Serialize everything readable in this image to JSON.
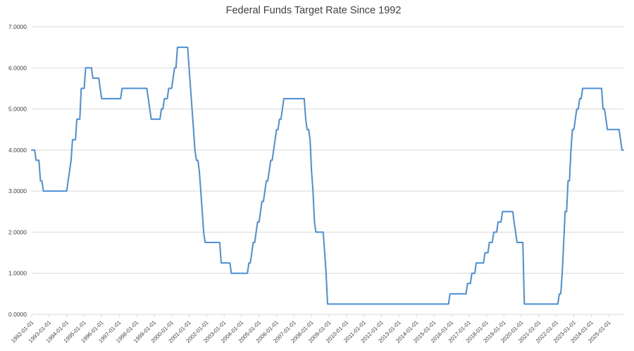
{
  "chart_data": {
    "type": "line",
    "title": "Federal Funds Target Rate Since 1992",
    "xlabel": "",
    "ylabel": "",
    "ylim": [
      0,
      7
    ],
    "grid": true,
    "legend": "none",
    "y_tick_labels": [
      "0.0000",
      "1.0000",
      "2.0000",
      "3.0000",
      "4.0000",
      "5.0000",
      "6.0000",
      "7.0000"
    ],
    "x_tick_labels": [
      "1992-01-01",
      "1993-01-01",
      "1994-01-01",
      "1995-01-01",
      "1996-01-01",
      "1997-01-01",
      "1998-01-01",
      "1999-01-01",
      "2000-01-01",
      "2001-01-01",
      "2002-01-01",
      "2003-01-01",
      "2004-01-01",
      "2005-01-01",
      "2006-01-01",
      "2007-01-01",
      "2008-01-01",
      "2009-01-01",
      "2010-01-01",
      "2011-01-01",
      "2012-01-01",
      "2013-01-01",
      "2014-01-01",
      "2015-01-01",
      "2016-01-01",
      "2017-01-01",
      "2018-01-01",
      "2019-01-01",
      "2020-01-01",
      "2021-01-01",
      "2022-01-01",
      "2023-01-01",
      "2024-01-01",
      "2025-01-01"
    ],
    "x_domain": [
      "1992-01",
      "2025-11"
    ],
    "rate_changes": [
      [
        "1992-01",
        4.0
      ],
      [
        "1992-04",
        3.75
      ],
      [
        "1992-07",
        3.25
      ],
      [
        "1992-09",
        3.0
      ],
      [
        "1994-02",
        3.25
      ],
      [
        "1994-03",
        3.5
      ],
      [
        "1994-04",
        3.75
      ],
      [
        "1994-05",
        4.25
      ],
      [
        "1994-08",
        4.75
      ],
      [
        "1994-11",
        5.5
      ],
      [
        "1995-02",
        6.0
      ],
      [
        "1995-07",
        5.75
      ],
      [
        "1995-12",
        5.5
      ],
      [
        "1996-01",
        5.25
      ],
      [
        "1997-03",
        5.5
      ],
      [
        "1998-09",
        5.25
      ],
      [
        "1998-10",
        5.0
      ],
      [
        "1998-11",
        4.75
      ],
      [
        "1999-06",
        5.0
      ],
      [
        "1999-08",
        5.25
      ],
      [
        "1999-11",
        5.5
      ],
      [
        "2000-02",
        5.75
      ],
      [
        "2000-03",
        6.0
      ],
      [
        "2000-05",
        6.5
      ],
      [
        "2001-01",
        6.0
      ],
      [
        "2001-02",
        5.5
      ],
      [
        "2001-03",
        5.0
      ],
      [
        "2001-04",
        4.5
      ],
      [
        "2001-05",
        4.0
      ],
      [
        "2001-06",
        3.75
      ],
      [
        "2001-08",
        3.5
      ],
      [
        "2001-09",
        3.0
      ],
      [
        "2001-10",
        2.5
      ],
      [
        "2001-11",
        2.0
      ],
      [
        "2001-12",
        1.75
      ],
      [
        "2002-11",
        1.25
      ],
      [
        "2003-06",
        1.0
      ],
      [
        "2004-06",
        1.25
      ],
      [
        "2004-08",
        1.5
      ],
      [
        "2004-09",
        1.75
      ],
      [
        "2004-11",
        2.0
      ],
      [
        "2004-12",
        2.25
      ],
      [
        "2005-02",
        2.5
      ],
      [
        "2005-03",
        2.75
      ],
      [
        "2005-05",
        3.0
      ],
      [
        "2005-06",
        3.25
      ],
      [
        "2005-08",
        3.5
      ],
      [
        "2005-09",
        3.75
      ],
      [
        "2005-11",
        4.0
      ],
      [
        "2005-12",
        4.25
      ],
      [
        "2006-01",
        4.5
      ],
      [
        "2006-03",
        4.75
      ],
      [
        "2006-05",
        5.0
      ],
      [
        "2006-06",
        5.25
      ],
      [
        "2007-09",
        4.75
      ],
      [
        "2007-10",
        4.5
      ],
      [
        "2007-12",
        4.25
      ],
      [
        "2008-01",
        3.5
      ],
      [
        "2008-02",
        3.0
      ],
      [
        "2008-03",
        2.25
      ],
      [
        "2008-04",
        2.0
      ],
      [
        "2008-10",
        1.5
      ],
      [
        "2008-11",
        1.0
      ],
      [
        "2008-12",
        0.25
      ],
      [
        "2015-12",
        0.5
      ],
      [
        "2016-12",
        0.75
      ],
      [
        "2017-03",
        1.0
      ],
      [
        "2017-06",
        1.25
      ],
      [
        "2017-12",
        1.5
      ],
      [
        "2018-03",
        1.75
      ],
      [
        "2018-06",
        2.0
      ],
      [
        "2018-09",
        2.25
      ],
      [
        "2018-12",
        2.5
      ],
      [
        "2019-08",
        2.25
      ],
      [
        "2019-09",
        2.0
      ],
      [
        "2019-10",
        1.75
      ],
      [
        "2020-03",
        0.25
      ],
      [
        "2022-03",
        0.5
      ],
      [
        "2022-05",
        1.0
      ],
      [
        "2022-06",
        1.75
      ],
      [
        "2022-07",
        2.5
      ],
      [
        "2022-09",
        3.25
      ],
      [
        "2022-11",
        4.0
      ],
      [
        "2022-12",
        4.5
      ],
      [
        "2023-02",
        4.75
      ],
      [
        "2023-03",
        5.0
      ],
      [
        "2023-05",
        5.25
      ],
      [
        "2023-07",
        5.5
      ],
      [
        "2024-09",
        5.0
      ],
      [
        "2024-11",
        4.75
      ],
      [
        "2024-12",
        4.5
      ],
      [
        "2025-09",
        4.25
      ],
      [
        "2025-10",
        4.0
      ]
    ],
    "colors": {
      "line": "#4a8fd8",
      "grid": "#d9d9d9",
      "axis": "#d9d9d9",
      "tick_text": "#404040",
      "title_text": "#404040",
      "background": "#ffffff"
    }
  }
}
